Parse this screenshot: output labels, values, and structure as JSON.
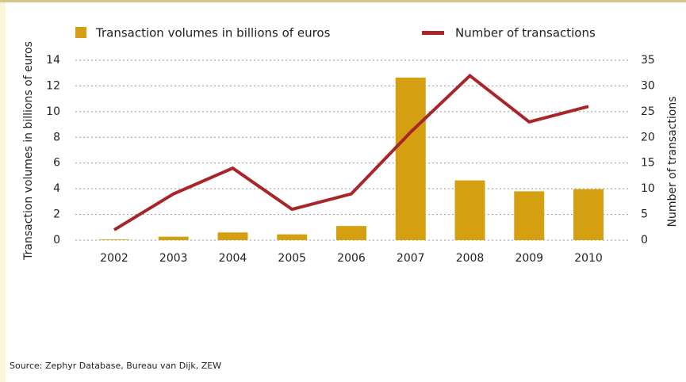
{
  "chart_data": {
    "type": "combo",
    "categories": [
      "2002",
      "2003",
      "2004",
      "2005",
      "2006",
      "2007",
      "2008",
      "2009",
      "2010"
    ],
    "series": [
      {
        "name": "Transaction volumes in billions of euros",
        "type": "bar",
        "color": "#d4a012",
        "axis": "y",
        "values": [
          0.05,
          0.27,
          0.6,
          0.45,
          1.1,
          12.65,
          4.65,
          3.8,
          3.97
        ]
      },
      {
        "name": "Number of transactions",
        "type": "line",
        "color": "#a8262a",
        "axis": "y2",
        "values": [
          2,
          9,
          14,
          6,
          9,
          21,
          32,
          23,
          26
        ]
      }
    ],
    "ylabel": "Transaction volumes in billions of euros",
    "y2label": "Number of transactions",
    "ylim": [
      0,
      14
    ],
    "yticks": [
      0,
      2,
      4,
      6,
      8,
      10,
      12,
      14
    ],
    "y2lim": [
      0,
      35
    ],
    "y2ticks": [
      0,
      5,
      10,
      15,
      20,
      25,
      30,
      35
    ],
    "grid": true,
    "source": "Source: Zephyr Database, Bureau van Dijk, ZEW"
  }
}
